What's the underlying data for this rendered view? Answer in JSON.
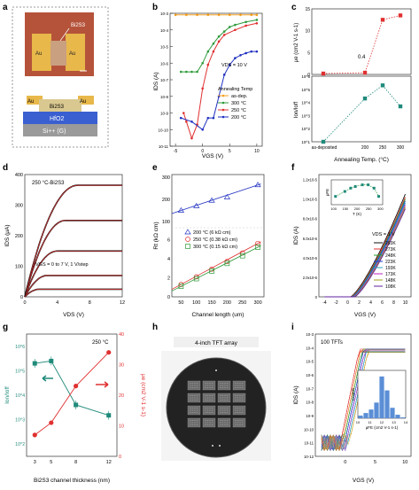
{
  "panel_labels": {
    "a": "a",
    "b": "b",
    "c": "c",
    "d": "d",
    "e": "e",
    "f": "f",
    "g": "g",
    "h": "h",
    "i": "i"
  },
  "panel_a": {
    "channel": "Bi2S3",
    "electrode_left": "Au",
    "electrode_right": "Au",
    "stack_au_left": "Au",
    "stack_channel": "Bi2S3",
    "stack_au_right": "Au",
    "stack_dielectric": "HfO2",
    "stack_gate": "Si++ (G)"
  },
  "panel_b": {
    "xlabel": "VGS (V)",
    "ylabel": "IDS (A)",
    "annotation": "VDS = 10 V",
    "legend_title": "Annealing Temp",
    "legend": [
      "as-dep.",
      "300 °C",
      "250 °C",
      "200 °C"
    ],
    "xticks": [
      "-5",
      "0",
      "5",
      "10"
    ],
    "yticks": [
      "10-3",
      "10-4",
      "10-5",
      "10-6",
      "10-7",
      "10-8",
      "10-9",
      "10-10",
      "10-11"
    ]
  },
  "panel_c": {
    "top_ylabel": "μe (cm2 V-1 s-1)",
    "bottom_ylabel": "Ion/Ioff",
    "xlabel": "Annealing Temp. (°C)",
    "xticks": [
      "as-deposited",
      "200",
      "250",
      "300"
    ],
    "top_yticks": [
      "0",
      "5",
      "10",
      "15"
    ],
    "bottom_yticks": [
      "10^6",
      "10^5",
      "10^4",
      "10^3",
      "10^2",
      "10^1"
    ],
    "annotation": "0.4"
  },
  "panel_d": {
    "title": "250 °C-Bi2S3",
    "xlabel": "VDS (V)",
    "ylabel": "IDS (μA)",
    "annotation": "VGS = 0 to 7 V, 1 V/step",
    "xticks": [
      "0",
      "4",
      "8",
      "12"
    ],
    "yticks": [
      "0",
      "100",
      "200",
      "300",
      "400"
    ]
  },
  "panel_e": {
    "xlabel": "Channel length (um)",
    "ylabel": "Rt (kΩ cm)",
    "legend": [
      "200 °C (6 kΩ cm)",
      "250 °C (0.38 kΩ cm)",
      "300 °C (0.15 kΩ cm)"
    ],
    "xticks": [
      "50",
      "100",
      "150",
      "200",
      "250",
      "300"
    ],
    "yticks_top": [
      "100",
      "200",
      "300"
    ],
    "yticks_bottom": [
      "0",
      "2",
      "4",
      "6"
    ]
  },
  "panel_f": {
    "xlabel": "VGS (V)",
    "ylabel": "IDS (A)",
    "annotation": "VDS = 1 V",
    "legend": [
      "293K",
      "273K",
      "248K",
      "223K",
      "193K",
      "173K",
      "148K",
      "108K"
    ],
    "xticks": [
      "-4",
      "-2",
      "0",
      "2",
      "4",
      "6",
      "8",
      "10"
    ],
    "yticks": [
      "0",
      "2.0x10-6",
      "4.0x10-6",
      "6.0x10-6",
      "8.0x10-6",
      "1.0x10-5",
      "1.2x10-5"
    ],
    "inset_xlabel": "T (K)",
    "inset_ylabel": "μFE",
    "inset_xticks": [
      "100",
      "150",
      "200",
      "250",
      "300"
    ]
  },
  "panel_g": {
    "xlabel": "Bi2S3 channel thickness (nm)",
    "left_ylabel": "Ion/Ioff",
    "right_ylabel": "μe (cm2 V-1 s-1)",
    "title": "250 °C",
    "xticks": [
      "3",
      "5",
      "8",
      "12"
    ],
    "left_yticks": [
      "10^6",
      "10^5",
      "10^4",
      "10^3",
      "10^2"
    ],
    "right_yticks": [
      "0",
      "10",
      "20",
      "30",
      "40"
    ]
  },
  "panel_h": {
    "caption": "4-inch TFT array"
  },
  "panel_i": {
    "annotation": "100 TFTs",
    "xlabel": "VGS (V)",
    "ylabel": "IDS (A)",
    "xticks": [
      "0",
      "5",
      "10"
    ],
    "yticks": [
      "10-3",
      "10-4",
      "10-5",
      "10-6",
      "10-7",
      "10-8",
      "10-9",
      "10-10",
      "10-11",
      "10-12"
    ],
    "inset_xlabel": "μFE (cm2 V-1 s-1)",
    "inset_ylabel": "Counts",
    "inset_xticks": [
      "10",
      "11",
      "12",
      "13",
      "14"
    ]
  },
  "colors": {
    "orange": "#f5a020",
    "green": "#2e9a3a",
    "red": "#e03030",
    "blue": "#2030c0",
    "teal": "#1f8a7a",
    "inset_bar": "#5b8ed6",
    "gold": "#e8b84a",
    "chip_bg": "#b5533a",
    "hfo2": "#3a5fd0",
    "si": "#9a9a9a"
  },
  "chart_data": [
    {
      "type": "line",
      "panel": "b",
      "xlabel": "VGS (V)",
      "ylabel": "IDS (A)",
      "yscale": "log",
      "xlim": [
        -6,
        11
      ],
      "ylim": [
        1e-11,
        0.001
      ],
      "series": [
        {
          "name": "as-dep.",
          "x": [
            -5,
            -3,
            -1,
            1,
            3,
            5,
            7,
            9,
            10
          ],
          "y": [
            0.0008,
            0.0008,
            0.0008,
            0.0008,
            0.0008,
            0.0008,
            0.0008,
            0.0008,
            0.0008
          ]
        },
        {
          "name": "300 °C",
          "x": [
            -4,
            -3,
            -2,
            -1,
            0,
            1,
            2,
            3,
            4,
            5,
            6,
            8,
            10
          ],
          "y": [
            3e-07,
            3e-07,
            3e-07,
            3e-07,
            1e-06,
            5e-06,
            1.5e-05,
            4e-05,
            8e-05,
            0.00015,
            0.0002,
            0.0003,
            0.0004
          ]
        },
        {
          "name": "250 °C",
          "x": [
            -3.5,
            -3,
            -2,
            -1,
            0,
            1,
            2,
            3,
            4,
            6,
            8,
            10
          ],
          "y": [
            1e-09,
            3e-10,
            3e-11,
            2e-10,
            3e-08,
            8e-07,
            5e-06,
            2e-05,
            5e-05,
            0.0001,
            0.00018,
            0.00025
          ]
        },
        {
          "name": "200 °C",
          "x": [
            -4,
            -2,
            0,
            1,
            2,
            3,
            4,
            5,
            6,
            7,
            8,
            9,
            10
          ],
          "y": [
            5e-10,
            3e-10,
            1e-10,
            5e-10,
            5e-10,
            1e-08,
            2e-07,
            8e-07,
            2e-06,
            3e-06,
            4e-06,
            5e-06,
            5e-06
          ]
        }
      ]
    },
    {
      "type": "line",
      "panel": "c-top",
      "categories": [
        "as-deposited",
        "200",
        "250",
        "300"
      ],
      "ylabel": "μe (cm2 V-1 s-1)",
      "series": [
        {
          "name": "",
          "values": [
            0.2,
            0.4,
            12.5,
            13.5
          ]
        }
      ]
    },
    {
      "type": "line",
      "panel": "c-bottom",
      "categories": [
        "as-deposited",
        "200",
        "250",
        "300"
      ],
      "ylabel": "Ion/Ioff",
      "yscale": "log",
      "series": [
        {
          "name": "",
          "values": [
            10,
            20000,
            200000,
            5000
          ]
        }
      ]
    },
    {
      "type": "line",
      "panel": "d",
      "xlabel": "VDS (V)",
      "ylabel": "IDS (μA)",
      "xlim": [
        0,
        12
      ],
      "ylim": [
        0,
        400
      ],
      "series": [
        {
          "name": "VGS=7",
          "sat": 365,
          "vsat": 6.5
        },
        {
          "name": "VGS=6",
          "sat": 250,
          "vsat": 5.0
        },
        {
          "name": "VGS=5",
          "sat": 150,
          "vsat": 4.0
        },
        {
          "name": "VGS=4",
          "sat": 70,
          "vsat": 2.8
        },
        {
          "name": "VGS=3",
          "sat": 25,
          "vsat": 1.8
        }
      ]
    },
    {
      "type": "scatter",
      "panel": "e",
      "xlabel": "Channel length (um)",
      "ylabel": "Rt (kΩ cm)",
      "series": [
        {
          "name": "200 °C (6 kΩ cm)",
          "x": [
            50,
            100,
            150,
            200,
            300
          ],
          "y": [
            150,
            170,
            195,
            210,
            265
          ]
        },
        {
          "name": "250 °C (0.38 kΩ cm)",
          "x": [
            50,
            100,
            150,
            200,
            250,
            300
          ],
          "y": [
            1.3,
            2.1,
            2.9,
            3.7,
            4.6,
            5.6
          ]
        },
        {
          "name": "300 °C (0.15 kΩ cm)",
          "x": [
            50,
            100,
            150,
            200,
            250,
            300
          ],
          "y": [
            1.1,
            1.9,
            2.7,
            3.5,
            4.3,
            5.2
          ]
        }
      ]
    },
    {
      "type": "line",
      "panel": "f",
      "xlabel": "VGS (V)",
      "ylabel": "IDS (A)",
      "xlim": [
        -5,
        11
      ],
      "ylim": [
        0,
        1.25e-05
      ],
      "series": [
        {
          "name": "293K",
          "vth": 0.5,
          "ymax": 1.05e-05
        },
        {
          "name": "273K",
          "vth": 0.6,
          "ymax": 1.02e-05
        },
        {
          "name": "248K",
          "vth": 0.7,
          "ymax": 1e-05
        },
        {
          "name": "223K",
          "vth": 0.8,
          "ymax": 9.8e-06
        },
        {
          "name": "193K",
          "vth": 0.9,
          "ymax": 9.6e-06
        },
        {
          "name": "173K",
          "vth": 1.0,
          "ymax": 9.4e-06
        },
        {
          "name": "148K",
          "vth": 1.1,
          "ymax": 9.2e-06
        },
        {
          "name": "108K",
          "vth": 1.2,
          "ymax": 9e-06
        }
      ],
      "inset": {
        "xlabel": "T (K)",
        "ylabel": "μFE",
        "x": [
          108,
          148,
          173,
          193,
          223,
          248,
          273,
          293
        ],
        "y": [
          6.0,
          6.3,
          6.5,
          6.6,
          6.7,
          6.7,
          6.5,
          6.0
        ]
      }
    },
    {
      "type": "line",
      "panel": "g",
      "categories": [
        "3",
        "5",
        "8",
        "12"
      ],
      "series": [
        {
          "name": "Ion/Ioff",
          "axis": "left",
          "yscale": "log",
          "values": [
            200000,
            250000,
            4000,
            1500
          ]
        },
        {
          "name": "μe",
          "axis": "right",
          "values": [
            7,
            11,
            23,
            34
          ]
        }
      ]
    },
    {
      "type": "bar",
      "panel": "i-inset",
      "xlabel": "μFE (cm2 V-1 s-1)",
      "ylabel": "Counts",
      "categories": [
        "10.0",
        "10.5",
        "11.0",
        "11.5",
        "12.0",
        "12.5",
        "13.0",
        "13.5",
        "14.0"
      ],
      "values": [
        3,
        6,
        10,
        18,
        48,
        32,
        12,
        4,
        1
      ]
    }
  ]
}
